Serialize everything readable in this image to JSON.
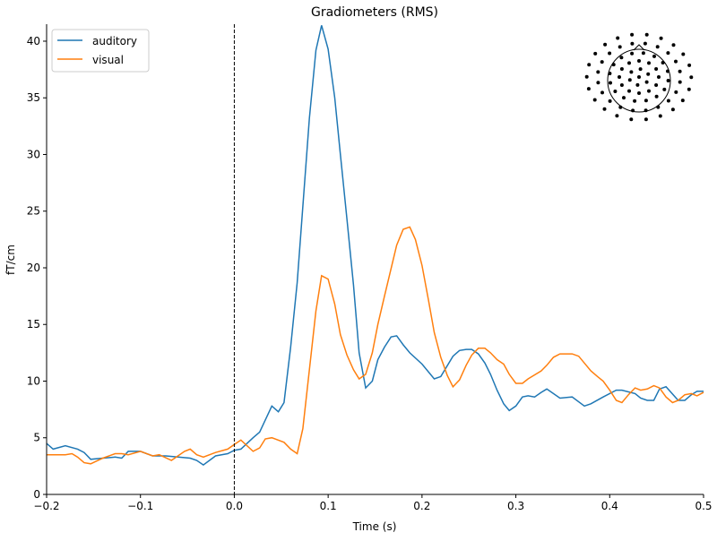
{
  "chart_data": {
    "type": "line",
    "title": "Gradiometers (RMS)",
    "xlabel": "Time (s)",
    "ylabel": "fT/cm",
    "xlim": [
      -0.2,
      0.5
    ],
    "ylim": [
      0,
      41.5
    ],
    "xticks": [
      -0.2,
      -0.1,
      0.0,
      0.1,
      0.2,
      0.3,
      0.4,
      0.5
    ],
    "xtick_labels": [
      "−0.2",
      "−0.1",
      "0.0",
      "0.1",
      "0.2",
      "0.3",
      "0.4",
      "0.5"
    ],
    "yticks": [
      0,
      5,
      10,
      15,
      20,
      25,
      30,
      35,
      40
    ],
    "ytick_labels": [
      "0",
      "5",
      "10",
      "15",
      "20",
      "25",
      "30",
      "35",
      "40"
    ],
    "grid": false,
    "legend_position": "top-left",
    "vline": {
      "x": 0.0,
      "style": "dashed",
      "color": "#000000"
    },
    "inset": "sensor-layout-topomap",
    "series": [
      {
        "name": "auditory",
        "color": "#1f77b4",
        "x": [
          -0.2,
          -0.193,
          -0.18,
          -0.167,
          -0.16,
          -0.153,
          -0.14,
          -0.127,
          -0.12,
          -0.113,
          -0.1,
          -0.087,
          -0.073,
          -0.06,
          -0.047,
          -0.04,
          -0.033,
          -0.02,
          -0.007,
          0.0,
          0.007,
          0.02,
          0.027,
          0.04,
          0.047,
          0.053,
          0.06,
          0.067,
          0.08,
          0.087,
          0.093,
          0.1,
          0.107,
          0.113,
          0.12,
          0.127,
          0.133,
          0.14,
          0.147,
          0.153,
          0.16,
          0.167,
          0.173,
          0.18,
          0.187,
          0.2,
          0.213,
          0.22,
          0.233,
          0.24,
          0.247,
          0.253,
          0.26,
          0.267,
          0.273,
          0.28,
          0.287,
          0.293,
          0.3,
          0.307,
          0.313,
          0.32,
          0.327,
          0.333,
          0.347,
          0.36,
          0.373,
          0.38,
          0.393,
          0.407,
          0.413,
          0.427,
          0.433,
          0.44,
          0.447,
          0.453,
          0.46,
          0.473,
          0.48,
          0.487,
          0.493,
          0.5
        ],
        "y": [
          4.5,
          4.0,
          4.3,
          4.0,
          3.7,
          3.1,
          3.2,
          3.3,
          3.2,
          3.8,
          3.8,
          3.4,
          3.4,
          3.3,
          3.2,
          3.0,
          2.6,
          3.4,
          3.6,
          3.9,
          4.0,
          5.0,
          5.5,
          7.8,
          7.3,
          8.1,
          13.0,
          18.7,
          33.2,
          39.2,
          41.4,
          39.3,
          35.0,
          30.0,
          24.3,
          18.5,
          12.5,
          9.4,
          10.0,
          11.9,
          13.0,
          13.9,
          14.0,
          13.2,
          12.5,
          11.5,
          10.2,
          10.4,
          12.2,
          12.7,
          12.8,
          12.8,
          12.4,
          11.6,
          10.6,
          9.2,
          8.0,
          7.4,
          7.8,
          8.6,
          8.7,
          8.6,
          9.0,
          9.3,
          8.5,
          8.6,
          7.8,
          8.0,
          8.6,
          9.2,
          9.2,
          8.9,
          8.5,
          8.3,
          8.3,
          9.3,
          9.5,
          8.3,
          8.3,
          8.8,
          9.1,
          9.1
        ]
      },
      {
        "name": "visual",
        "color": "#ff7f0e",
        "x": [
          -0.2,
          -0.18,
          -0.173,
          -0.167,
          -0.16,
          -0.153,
          -0.14,
          -0.127,
          -0.12,
          -0.113,
          -0.1,
          -0.087,
          -0.08,
          -0.067,
          -0.053,
          -0.047,
          -0.04,
          -0.033,
          -0.02,
          -0.007,
          0.0,
          0.007,
          0.02,
          0.027,
          0.033,
          0.04,
          0.053,
          0.06,
          0.067,
          0.073,
          0.087,
          0.093,
          0.1,
          0.107,
          0.113,
          0.12,
          0.127,
          0.133,
          0.14,
          0.147,
          0.153,
          0.16,
          0.173,
          0.18,
          0.187,
          0.193,
          0.2,
          0.207,
          0.213,
          0.22,
          0.227,
          0.233,
          0.24,
          0.247,
          0.253,
          0.26,
          0.267,
          0.273,
          0.28,
          0.287,
          0.293,
          0.3,
          0.307,
          0.313,
          0.327,
          0.333,
          0.34,
          0.347,
          0.36,
          0.367,
          0.373,
          0.38,
          0.387,
          0.393,
          0.4,
          0.407,
          0.413,
          0.42,
          0.427,
          0.433,
          0.44,
          0.447,
          0.453,
          0.46,
          0.467,
          0.473,
          0.48,
          0.487,
          0.493,
          0.5
        ],
        "y": [
          3.5,
          3.5,
          3.6,
          3.3,
          2.8,
          2.7,
          3.2,
          3.6,
          3.6,
          3.5,
          3.8,
          3.4,
          3.5,
          3.0,
          3.8,
          4.0,
          3.5,
          3.3,
          3.7,
          4.0,
          4.4,
          4.8,
          3.8,
          4.1,
          4.9,
          5.0,
          4.6,
          4.0,
          3.6,
          5.8,
          16.2,
          19.3,
          19.0,
          16.8,
          14.1,
          12.3,
          11.0,
          10.2,
          10.6,
          12.5,
          15.0,
          17.5,
          22.0,
          23.4,
          23.6,
          22.5,
          20.2,
          17.1,
          14.3,
          12.1,
          10.5,
          9.5,
          10.1,
          11.4,
          12.3,
          12.9,
          12.9,
          12.5,
          11.9,
          11.5,
          10.6,
          9.8,
          9.8,
          10.2,
          10.9,
          11.4,
          12.1,
          12.4,
          12.4,
          12.2,
          11.6,
          10.9,
          10.4,
          10.0,
          9.2,
          8.3,
          8.1,
          8.8,
          9.4,
          9.2,
          9.3,
          9.6,
          9.4,
          8.6,
          8.1,
          8.3,
          8.8,
          8.9,
          8.7,
          9.0
        ]
      }
    ]
  }
}
